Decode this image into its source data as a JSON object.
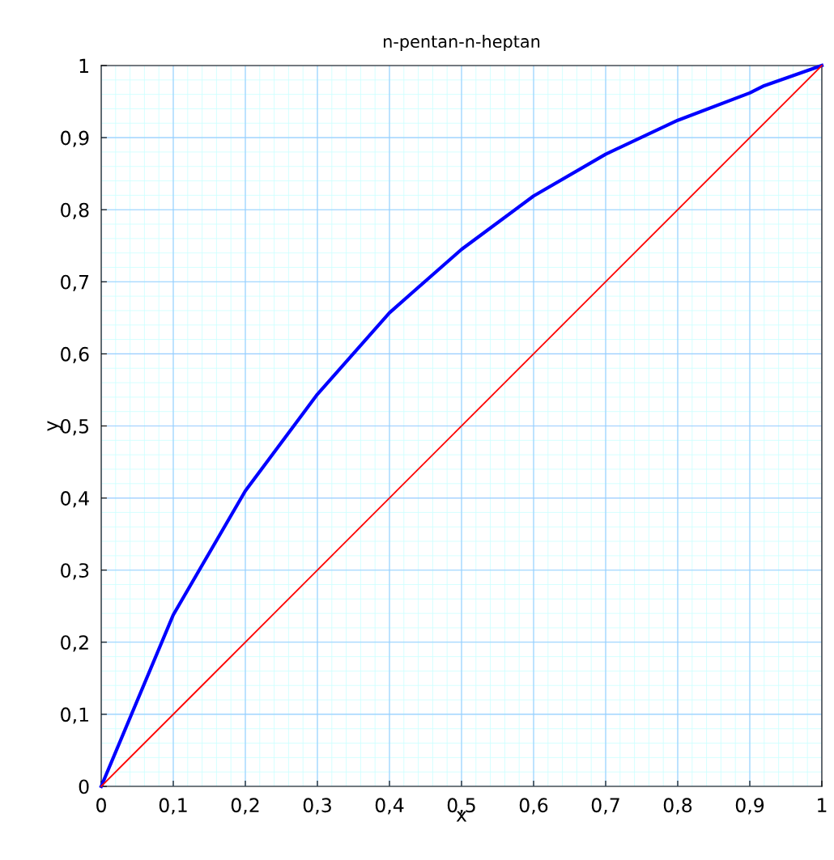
{
  "chart_data": {
    "type": "line",
    "title": "n-pentan-n-heptan",
    "xlabel": "x",
    "ylabel": "y",
    "series": [
      {
        "color": "#0000ff",
        "x": [
          0,
          0.1,
          0.2,
          0.3,
          0.4,
          0.5,
          0.6,
          0.7,
          0.8,
          0.9,
          0.92,
          1
        ],
        "values": [
          0,
          0.238,
          0.41,
          0.544,
          0.657,
          0.745,
          0.819,
          0.877,
          0.924,
          0.962,
          0.972,
          1
        ]
      },
      {
        "color": "#ff0000",
        "x": [
          0,
          1
        ],
        "values": [
          0,
          1
        ]
      }
    ],
    "xlim": [
      0,
      1
    ],
    "ylim": [
      0,
      1
    ],
    "xticks": [
      0,
      {
        "value": 0.1,
        "label": "0,1"
      },
      {
        "value": 0.2,
        "label": "0,2"
      },
      {
        "value": 0.3,
        "label": "0,3"
      },
      {
        "value": 0.4,
        "label": "0,4"
      },
      {
        "value": 0.5,
        "label": "0,5"
      },
      {
        "value": 0.6,
        "label": "0,6"
      },
      {
        "value": 0.7,
        "label": "0,7"
      },
      {
        "value": 0.8,
        "label": "0,8"
      },
      {
        "value": 0.9,
        "label": "0,9"
      },
      1
    ],
    "yticks": [
      0,
      {
        "value": 0.1,
        "label": "0,1"
      },
      {
        "value": 0.2,
        "label": "0,2"
      },
      {
        "value": 0.3,
        "label": "0,3"
      },
      {
        "value": 0.4,
        "label": "0,4"
      },
      {
        "value": 0.5,
        "label": "0,5"
      },
      {
        "value": 0.6,
        "label": "0,6"
      },
      {
        "value": 0.7,
        "label": "0,7"
      },
      {
        "value": 0.8,
        "label": "0,8"
      },
      {
        "value": 0.9,
        "label": "0,9"
      },
      1
    ],
    "grid": true,
    "marker": "none",
    "line_style": "solid",
    "legend": false
  }
}
